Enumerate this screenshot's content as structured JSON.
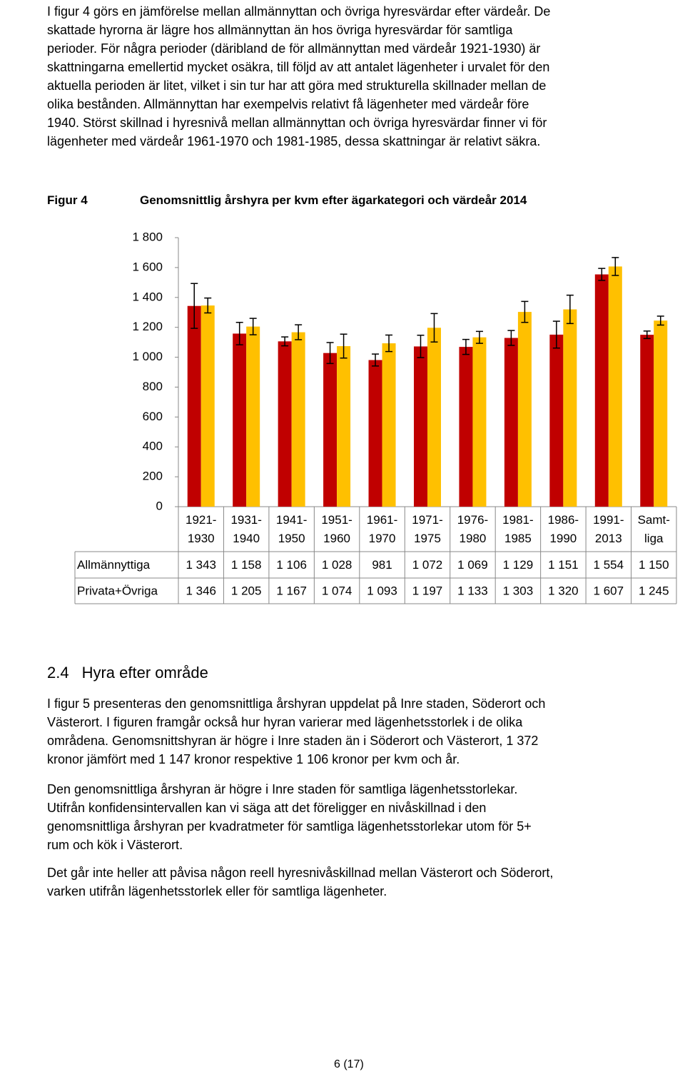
{
  "intro": {
    "lines": [
      "I figur 4 görs en jämförelse mellan allmännyttan och övriga hyresvärdar efter värdeår. De",
      "skattade hyrorna är lägre hos allmännyttan än hos övriga hyresvärdar för samtliga",
      "perioder. För några perioder (däribland de för allmännyttan med värdeår 1921-1930) är",
      "skattningarna emellertid mycket osäkra, till följd av att antalet lägenheter i urvalet för den",
      "aktuella perioden är litet, vilket i sin tur har att göra med strukturella skillnader mellan de",
      "olika bestånden. Allmännyttan har exempelvis relativt få lägenheter med värdeår före",
      "1940. Störst skillnad i hyresnivå mellan allmännyttan och övriga hyresvärdar finner vi för",
      "lägenheter med värdeår 1961-1970 och 1981-1985, dessa skattningar är relativt säkra."
    ]
  },
  "figure_label": "Figur 4",
  "chart_data": {
    "type": "bar",
    "title": "Genomsnittlig årshyra per kvm efter ägarkategori och värdeår 2014",
    "categories": [
      "1921-\n1930",
      "1931-\n1940",
      "1941-\n1950",
      "1951-\n1960",
      "1961-\n1970",
      "1971-\n1975",
      "1976-\n1980",
      "1981-\n1985",
      "1986-\n1990",
      "1991-\n2013",
      "Samt-\nliga"
    ],
    "series": [
      {
        "name": "Allmännyttiga",
        "color": "#c00000",
        "values": [
          1343,
          1158,
          1106,
          1028,
          981,
          1072,
          1069,
          1129,
          1151,
          1554,
          1150
        ],
        "value_labels": [
          "1 343",
          "1 158",
          "1 106",
          "1 028",
          "981",
          "1 072",
          "1 069",
          "1 129",
          "1 151",
          "1 554",
          "1 150"
        ],
        "errors": [
          150,
          75,
          30,
          70,
          40,
          75,
          50,
          50,
          90,
          40,
          25
        ]
      },
      {
        "name": "Privata+Övriga",
        "color": "#ffc000",
        "values": [
          1346,
          1205,
          1167,
          1074,
          1093,
          1197,
          1133,
          1303,
          1320,
          1607,
          1245
        ],
        "value_labels": [
          "1 346",
          "1 205",
          "1 167",
          "1 074",
          "1 093",
          "1 197",
          "1 133",
          "1 303",
          "1 320",
          "1 607",
          "1 245"
        ],
        "errors": [
          50,
          55,
          50,
          80,
          55,
          95,
          40,
          70,
          95,
          60,
          30
        ]
      }
    ],
    "ylim": [
      0,
      1800
    ],
    "yticks": [
      0,
      200,
      400,
      600,
      800,
      {
        "value": 1000,
        "label": "1 000"
      },
      {
        "value": 1200,
        "label": "1 200"
      },
      {
        "value": 1400,
        "label": "1 400"
      },
      {
        "value": 1600,
        "label": "1 600"
      },
      {
        "value": 1800,
        "label": "1 800"
      }
    ],
    "grid": false
  },
  "section": {
    "number": "2.4",
    "title": "Hyra efter område"
  },
  "paragraphs": [
    {
      "lines": [
        "I figur 5 presenteras den genomsnittliga årshyran uppdelat på Inre staden, Söderort och",
        "Västerort. I figuren framgår också hur hyran varierar med lägenhetsstorlek i de olika",
        "områdena. Genomsnittshyran är högre i Inre staden än i Söderort och Västerort, 1 372",
        "kronor jämfört med 1 147 kronor respektive 1 106 kronor per kvm och år."
      ]
    },
    {
      "lines": [
        "Den genomsnittliga årshyran är högre i Inre staden för samtliga lägenhetsstorlekar.",
        "Utifrån konfidensintervallen kan vi säga att det föreligger en nivåskillnad i den",
        "genomsnittliga årshyran per kvadratmeter för samtliga lägenhetsstorlekar utom för 5+",
        "rum och kök i Västerort."
      ]
    },
    {
      "lines": [
        "Det går inte heller att påvisa någon reell hyresnivåskillnad mellan Västerort och Söderort,",
        "varken utifrån lägenhetsstorlek eller för samtliga lägenheter."
      ]
    }
  ],
  "footer": "6 (17)"
}
